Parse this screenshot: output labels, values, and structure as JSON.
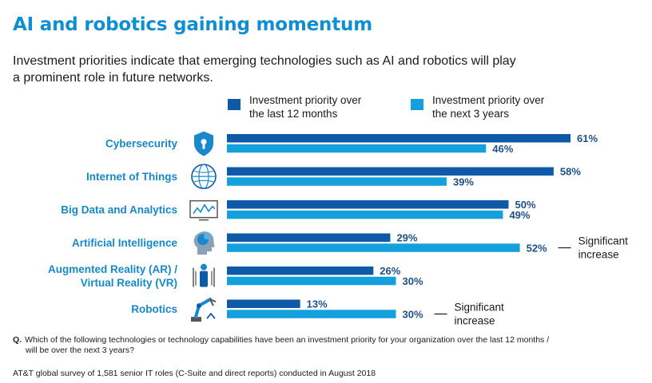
{
  "header": {
    "title": "AI and robotics gaining momentum",
    "subtitle": "Investment priorities indicate that emerging technologies such as AI and robotics will play a prominent role in future networks."
  },
  "colors": {
    "past": "#0f5aa8",
    "future": "#14a0dc",
    "category_label": "#1689c9",
    "value_label": "#1f4f86",
    "title": "#0f8fd1"
  },
  "chart_data": {
    "type": "bar",
    "orientation": "horizontal",
    "categories": [
      [
        "Cybersecurity"
      ],
      [
        "Internet of Things"
      ],
      [
        "Big Data and Analytics"
      ],
      [
        "Artificial Intelligence"
      ],
      [
        "Augmented Reality (AR) /",
        "Virtual Reality (VR)"
      ],
      [
        "Robotics"
      ]
    ],
    "category_icons": [
      "shield-lock-icon",
      "globe-network-icon",
      "monitor-analytics-icon",
      "brain-head-icon",
      "vr-headset-icon",
      "robot-arm-icon"
    ],
    "series": [
      {
        "name": [
          "Investment priority over",
          "the last 12 months"
        ],
        "color": "#0f5aa8",
        "values": [
          61,
          58,
          50,
          29,
          26,
          13
        ]
      },
      {
        "name": [
          "Investment priority over",
          "the next 3 years"
        ],
        "color": "#14a0dc",
        "values": [
          46,
          39,
          49,
          52,
          30,
          30
        ]
      }
    ],
    "value_suffix": "%",
    "xlim": [
      0,
      100
    ],
    "grid": false,
    "legend_position": "top",
    "annotations": [
      {
        "category_index": 3,
        "series_index": 1,
        "text": [
          "Significant",
          "increase"
        ]
      },
      {
        "category_index": 5,
        "series_index": 1,
        "text": [
          "Significant",
          "increase"
        ]
      }
    ]
  },
  "footnote": {
    "q_label": "Q.",
    "line1": "Which of the following technologies or technology capabilities have been an investment priority for your organization over the last 12 months /",
    "line2": "will be over the next 3 years?"
  },
  "source": "AT&T global survey of 1,581 senior IT roles (C-Suite and direct reports) conducted in August 2018"
}
